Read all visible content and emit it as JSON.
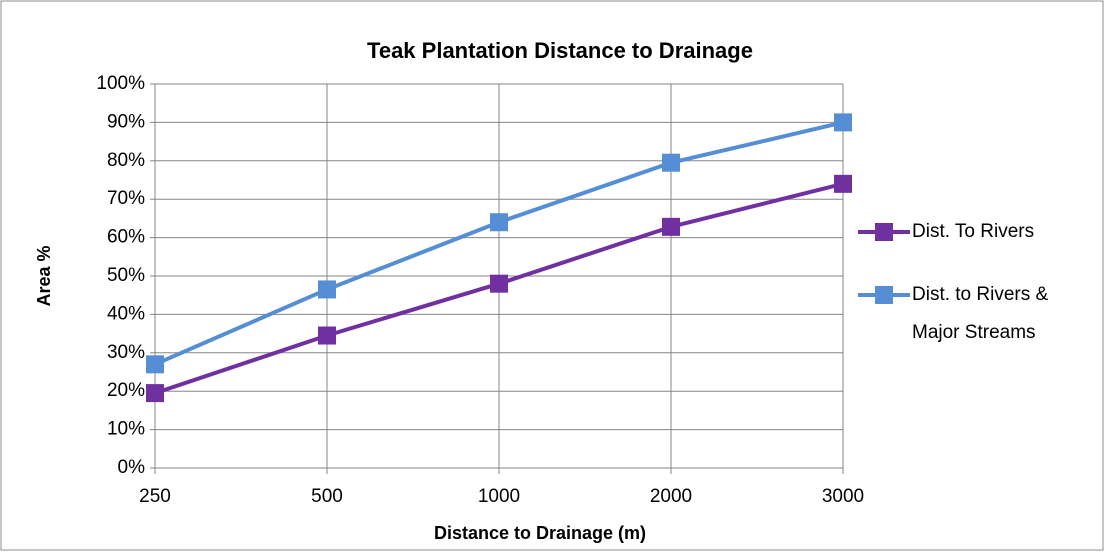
{
  "chart_data": {
    "type": "line",
    "title": "Teak Plantation Distance to Drainage",
    "x_label": "Distance to Drainage (m)",
    "y_label": "Area %",
    "categories": [
      "250",
      "500",
      "1000",
      "2000",
      "3000"
    ],
    "series": [
      {
        "name": "Dist. To Rivers",
        "color": "#7030a0",
        "values": [
          19.5,
          34.5,
          48,
          62.8,
          74
        ]
      },
      {
        "name": "Dist. to Rivers & Major Streams",
        "color": "#558ed5",
        "values": [
          27,
          46.5,
          64,
          79.5,
          90
        ]
      }
    ],
    "ylim": [
      0,
      100
    ],
    "yticks": [
      {
        "value": 0,
        "label": "0%"
      },
      {
        "value": 10,
        "label": "10%"
      },
      {
        "value": 20,
        "label": "20%"
      },
      {
        "value": 30,
        "label": "30%"
      },
      {
        "value": 40,
        "label": "40%"
      },
      {
        "value": 50,
        "label": "50%"
      },
      {
        "value": 60,
        "label": "60%"
      },
      {
        "value": 70,
        "label": "70%"
      },
      {
        "value": 80,
        "label": "80%"
      },
      {
        "value": 90,
        "label": "90%"
      },
      {
        "value": 100,
        "label": "100%"
      }
    ],
    "grid": true,
    "legend": "right"
  }
}
